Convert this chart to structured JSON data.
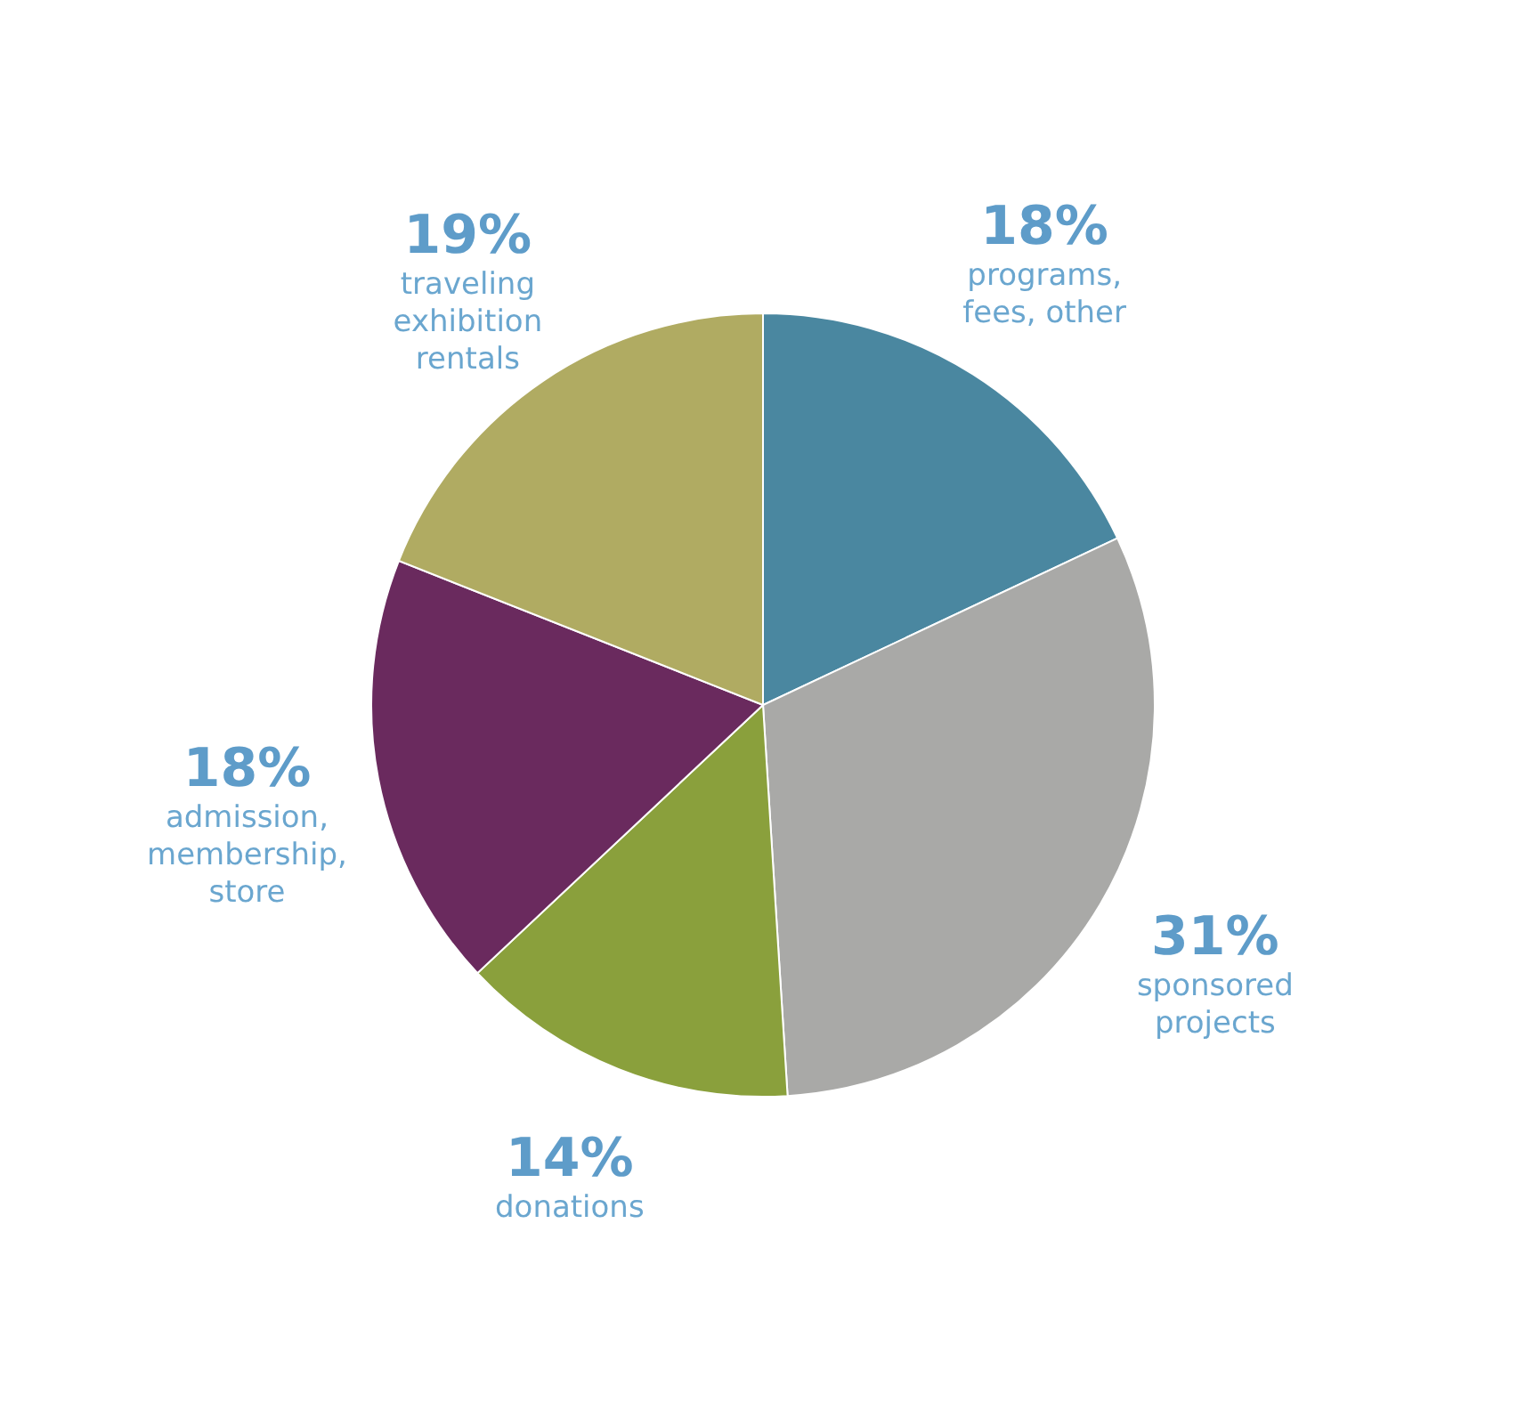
{
  "chart_data": {
    "type": "pie",
    "categories": [
      "programs,\nfees, other",
      "sponsored\nprojects",
      "donations",
      "admission,\nmembership,\nstore",
      "traveling\nexhibition\nrentals"
    ],
    "values": [
      18,
      31,
      14,
      18,
      19
    ],
    "value_labels": [
      "18%",
      "31%",
      "14%",
      "18%",
      "19%"
    ],
    "colors": [
      "#4a87a0",
      "#a9a9a7",
      "#8aa03c",
      "#6a2a5e",
      "#b0ab62"
    ]
  }
}
